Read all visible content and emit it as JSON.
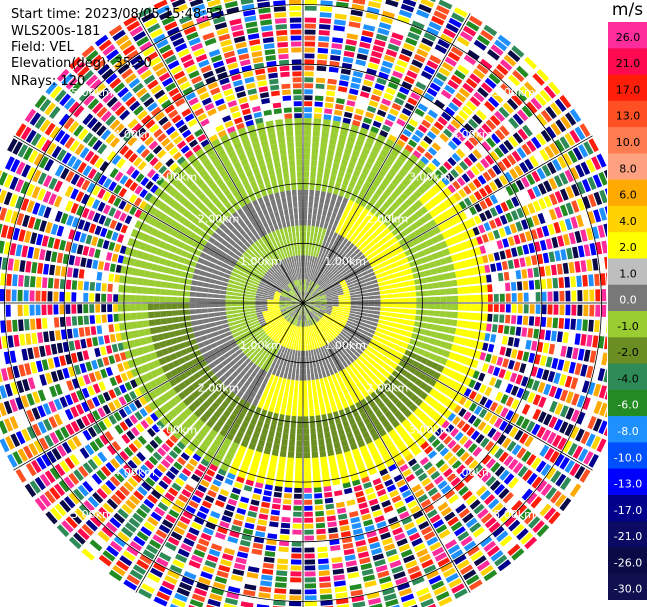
{
  "header": {
    "start_time": "Start time: 2023/08/05 15:48:53",
    "site": "WLS200s-181",
    "field": "Field: VEL",
    "elevation": "Elevation(deg): 35.30",
    "nrays": "NRays: 120"
  },
  "chart_data": {
    "type": "heatmap",
    "subtype": "ppi-polar",
    "title": "",
    "field": "VEL",
    "nrays": 120,
    "max_range_km": 5.6,
    "range_ring_labels": [
      "1.00km",
      "2.00km",
      "3.00km",
      "4.00km",
      "5.00km"
    ],
    "ring_ranges_km": [
      1,
      2,
      3,
      4,
      5
    ],
    "colorbar": {
      "unit": "m/s",
      "ticks": [
        "26.0",
        "21.0",
        "17.0",
        "13.0",
        "10.0",
        "8.0",
        "6.0",
        "4.0",
        "2.0",
        "1.0",
        "0.0",
        "-1.0",
        "-2.0",
        "-4.0",
        "-6.0",
        "-8.0",
        "-10.0",
        "-13.0",
        "-17.0",
        "-21.0",
        "-26.0",
        "-30.0"
      ],
      "colors": [
        "#ff2d9b",
        "#ff0a50",
        "#ff1e0a",
        "#ff5023",
        "#ff7b50",
        "#ffa080",
        "#ffaa00",
        "#ffd200",
        "#ffff00",
        "#bebebe",
        "#787878",
        "#9acd32",
        "#6b8e23",
        "#2e8b57",
        "#228b22",
        "#1e90ff",
        "#0050ff",
        "#0000ff",
        "#00008b",
        "#0a0a64",
        "#0a0a46",
        "#101050"
      ]
    }
  }
}
